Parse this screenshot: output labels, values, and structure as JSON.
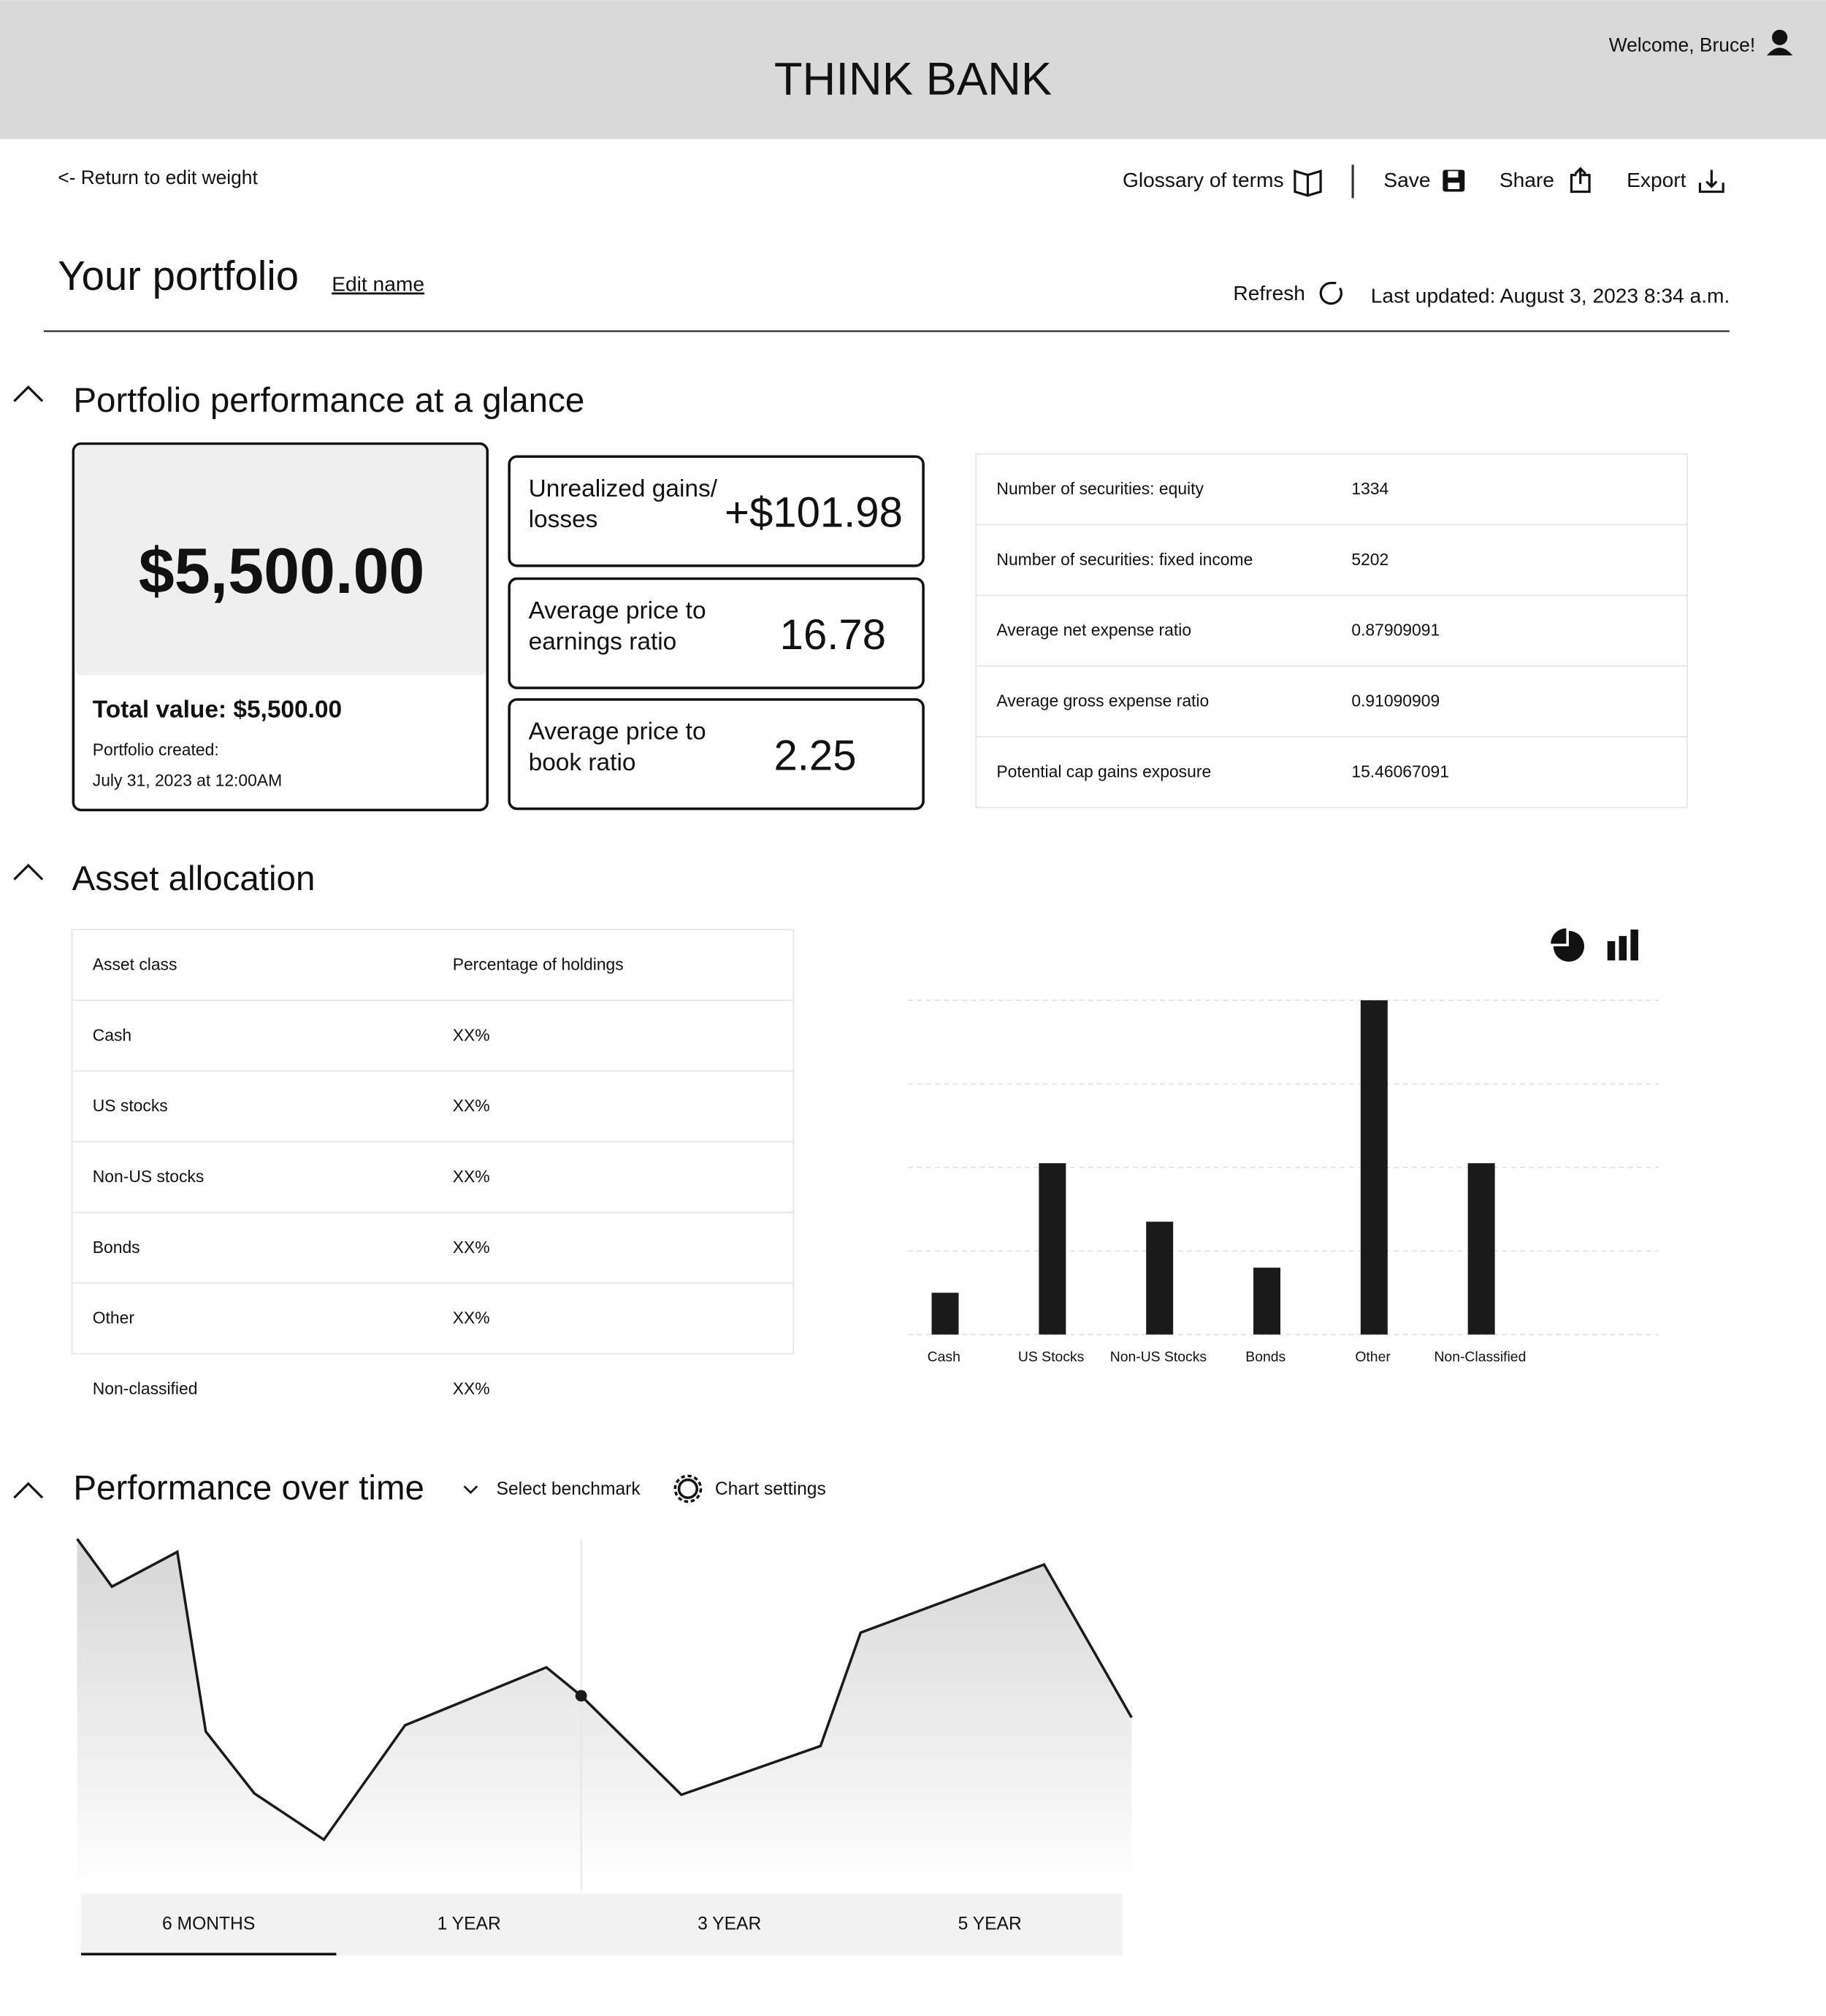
{
  "header": {
    "title": "THINK BANK",
    "welcome": "Welcome, Bruce!"
  },
  "toolbar": {
    "back": "<- Return to edit weight",
    "actions": [
      "Glossary of terms",
      "Save",
      "Share",
      "Export"
    ]
  },
  "portfolio": {
    "title": "Your portfolio",
    "edit": "Edit name",
    "refresh": "Refresh",
    "last_updated": "Last updated: August 3, 2023 8:34 a.m."
  },
  "glance": {
    "title": "Portfolio performance at a glance",
    "big_value": "$5,500.00",
    "total": "Total value: $5,500.00",
    "created_label": "Portfolio created:",
    "created": "July 31, 2023 at 12:00AM",
    "cards": [
      {
        "label": "Unrealized gains/ losses",
        "value": "+$101.98"
      },
      {
        "label": "Average price to earnings ratio",
        "value": "16.78"
      },
      {
        "label": "Average price to book ratio",
        "value": "2.25"
      }
    ],
    "stats": [
      [
        "Number of securities: equity",
        "1334"
      ],
      [
        "Number of securities: fixed income",
        "5202"
      ],
      [
        "Average net expense ratio",
        "0.87909091"
      ],
      [
        "Average gross expense ratio",
        "0.91090909"
      ],
      [
        "Potential cap gains exposure",
        "15.46067091"
      ]
    ]
  },
  "allocation": {
    "title": "Asset allocation",
    "table": {
      "header": [
        "Asset class",
        "Percentage of holdings"
      ],
      "rows": [
        [
          "Cash",
          "XX%"
        ],
        [
          "US stocks",
          "XX%"
        ],
        [
          "Non-US stocks",
          "XX%"
        ],
        [
          "Bonds",
          "XX%"
        ],
        [
          "Other",
          "XX%"
        ],
        [
          "Non-classified",
          "XX%"
        ]
      ]
    },
    "chart_data": {
      "type": "bar",
      "categories": [
        "Cash",
        "US Stocks",
        "Non-US Stocks",
        "Bonds",
        "Other",
        "Non-Classified"
      ],
      "values": [
        0.5,
        2.05,
        1.35,
        0.8,
        4,
        2.05
      ],
      "color": "#1a1a1a",
      "ylim": [
        0,
        4
      ],
      "yticks": [
        0,
        1,
        2,
        3,
        4
      ],
      "grid": true
    }
  },
  "performance": {
    "title": "Performance over time",
    "benchmark": "Select benchmark",
    "settings": "Chart settings",
    "chart_data": {
      "type": "area",
      "x": [
        0,
        3.3,
        9.5,
        12.2,
        16.8,
        23.4,
        31.1,
        44.5,
        47.8,
        57.3,
        70.5,
        74.3,
        91.7,
        100
      ],
      "values": [
        100,
        86.4,
        96.3,
        45.1,
        27.5,
        14.3,
        46.9,
        63.4,
        55.3,
        27.1,
        41.0,
        73.3,
        92.7,
        49.1
      ],
      "xlim": [
        0,
        100
      ],
      "ylim": [
        0,
        100
      ],
      "marker_index": 8,
      "color": "#1a1a1a"
    },
    "tabs": [
      "6 MONTHS",
      "1 YEAR",
      "3 YEAR",
      "5 YEAR"
    ],
    "active_tab": 0
  }
}
